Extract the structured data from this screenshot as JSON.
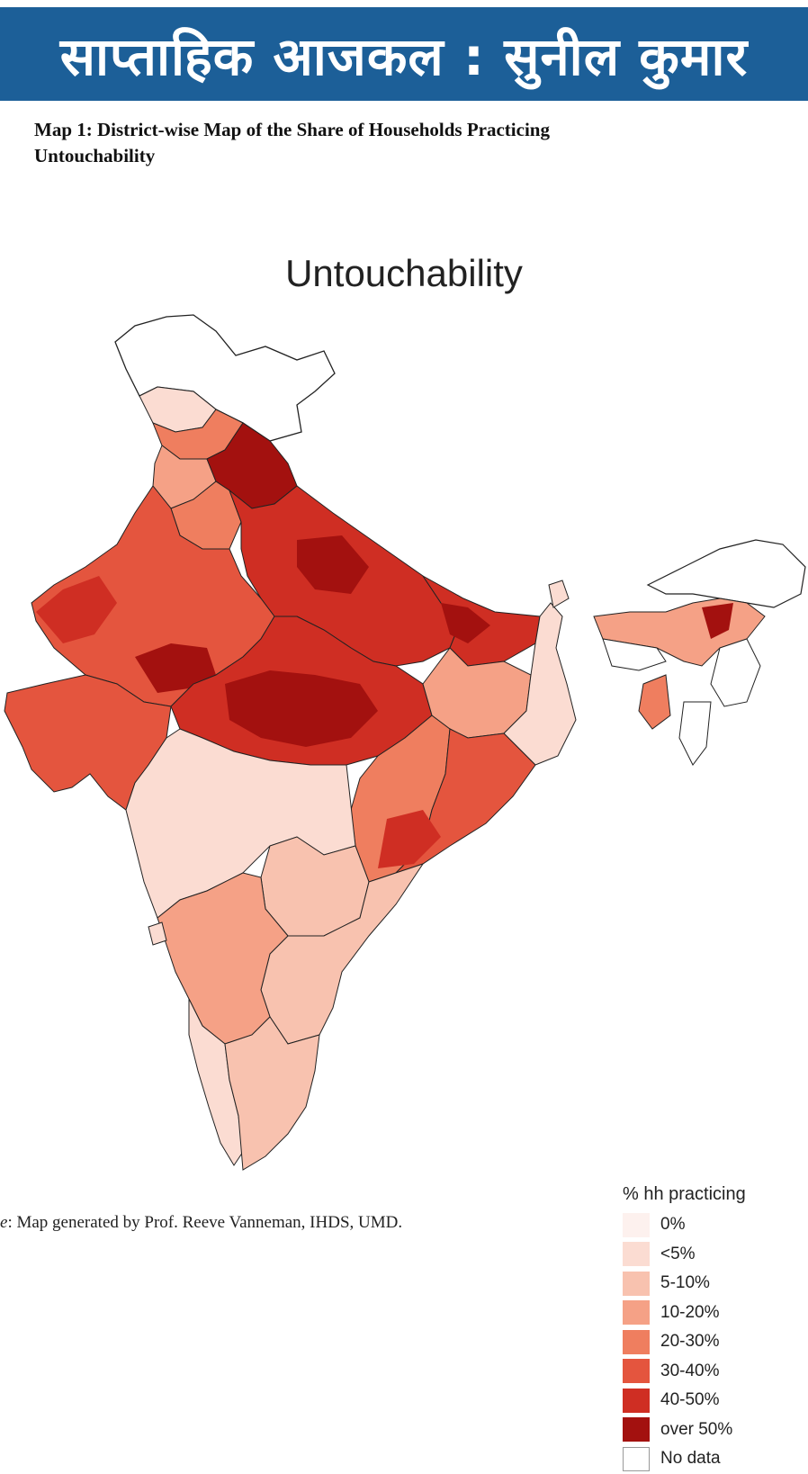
{
  "banner": {
    "title": "साप्ताहिक आजकल : सुनील कुमार"
  },
  "caption": {
    "line1": "Map 1: District-wise Map of the Share of Households Practicing",
    "line2": "Untouchability"
  },
  "map": {
    "title": "Untouchability",
    "legend": {
      "title": "% hh practicing",
      "items": [
        {
          "label": "0%",
          "color": "#fdf1ee"
        },
        {
          "label": "<5%",
          "color": "#fbdcd2"
        },
        {
          "label": "5-10%",
          "color": "#f8c2af"
        },
        {
          "label": "10-20%",
          "color": "#f5a186"
        },
        {
          "label": "20-30%",
          "color": "#ef7e5f"
        },
        {
          "label": "30-40%",
          "color": "#e4553e"
        },
        {
          "label": "40-50%",
          "color": "#cf2e23"
        },
        {
          "label": "over 50%",
          "color": "#a3110f"
        },
        {
          "label": "No data",
          "color": "#ffffff"
        }
      ]
    }
  },
  "source": {
    "prefix": "e",
    "text": ": Map generated by Prof. Reeve Vanneman, IHDS, UMD."
  }
}
